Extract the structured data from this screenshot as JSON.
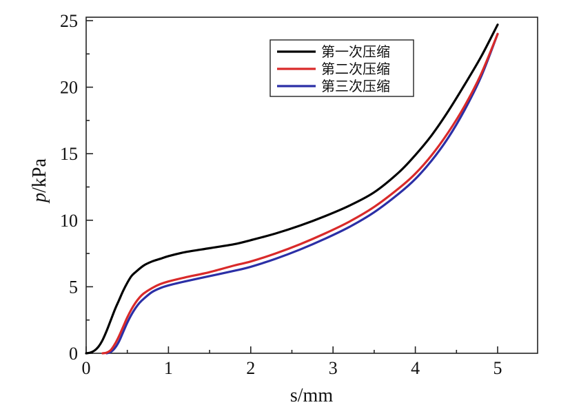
{
  "chart_data": {
    "type": "line",
    "xlabel": "s/mm",
    "ylabel_italic": "p",
    "ylabel_rest": "/kPa",
    "xlim": [
      0,
      5.5
    ],
    "ylim": [
      0,
      25
    ],
    "xticks": [
      0,
      1,
      2,
      3,
      4,
      5
    ],
    "yticks": [
      0,
      5,
      10,
      15,
      20,
      25
    ],
    "xtick_labels": [
      "0",
      "1",
      "2",
      "3",
      "4",
      "5"
    ],
    "ytick_labels": [
      "0",
      "5",
      "10",
      "15",
      "20",
      "25"
    ],
    "grid": false,
    "legend_position": "top-right",
    "series": [
      {
        "name": "第一次压缩",
        "color": "#000000",
        "x": [
          0.0,
          0.05,
          0.1,
          0.15,
          0.2,
          0.25,
          0.3,
          0.35,
          0.4,
          0.45,
          0.5,
          0.55,
          0.6,
          0.7,
          0.8,
          0.9,
          1.0,
          1.2,
          1.5,
          1.8,
          2.0,
          2.3,
          2.6,
          2.9,
          3.2,
          3.5,
          3.8,
          4.0,
          4.2,
          4.4,
          4.6,
          4.8,
          5.0
        ],
        "y": [
          0.0,
          0.05,
          0.2,
          0.5,
          1.0,
          1.7,
          2.5,
          3.3,
          4.0,
          4.7,
          5.3,
          5.8,
          6.1,
          6.6,
          6.9,
          7.1,
          7.3,
          7.6,
          7.9,
          8.2,
          8.5,
          9.0,
          9.6,
          10.3,
          11.1,
          12.1,
          13.6,
          14.9,
          16.4,
          18.2,
          20.2,
          22.3,
          24.7
        ]
      },
      {
        "name": "第二次压缩",
        "color": "#d92a2a",
        "x": [
          0.2,
          0.25,
          0.3,
          0.35,
          0.4,
          0.45,
          0.5,
          0.55,
          0.6,
          0.65,
          0.7,
          0.8,
          0.9,
          1.0,
          1.2,
          1.5,
          1.8,
          2.0,
          2.3,
          2.6,
          2.9,
          3.2,
          3.5,
          3.8,
          4.0,
          4.2,
          4.4,
          4.6,
          4.8,
          5.0
        ],
        "y": [
          0.0,
          0.05,
          0.25,
          0.7,
          1.3,
          2.0,
          2.7,
          3.3,
          3.8,
          4.2,
          4.5,
          4.9,
          5.2,
          5.4,
          5.7,
          6.1,
          6.6,
          6.9,
          7.5,
          8.2,
          9.0,
          9.9,
          11.0,
          12.4,
          13.5,
          14.9,
          16.6,
          18.6,
          21.0,
          24.0
        ]
      },
      {
        "name": "第三次压缩",
        "color": "#2b2fa6",
        "x": [
          0.25,
          0.3,
          0.35,
          0.4,
          0.45,
          0.5,
          0.55,
          0.6,
          0.65,
          0.7,
          0.8,
          0.9,
          1.0,
          1.2,
          1.5,
          1.8,
          2.0,
          2.3,
          2.6,
          2.9,
          3.2,
          3.5,
          3.8,
          4.0,
          4.2,
          4.4,
          4.6,
          4.8,
          5.0
        ],
        "y": [
          0.0,
          0.1,
          0.4,
          0.9,
          1.6,
          2.3,
          2.9,
          3.4,
          3.8,
          4.1,
          4.6,
          4.9,
          5.1,
          5.4,
          5.8,
          6.2,
          6.5,
          7.1,
          7.8,
          8.6,
          9.5,
          10.6,
          12.0,
          13.1,
          14.5,
          16.2,
          18.3,
          20.8,
          24.0
        ]
      }
    ]
  }
}
